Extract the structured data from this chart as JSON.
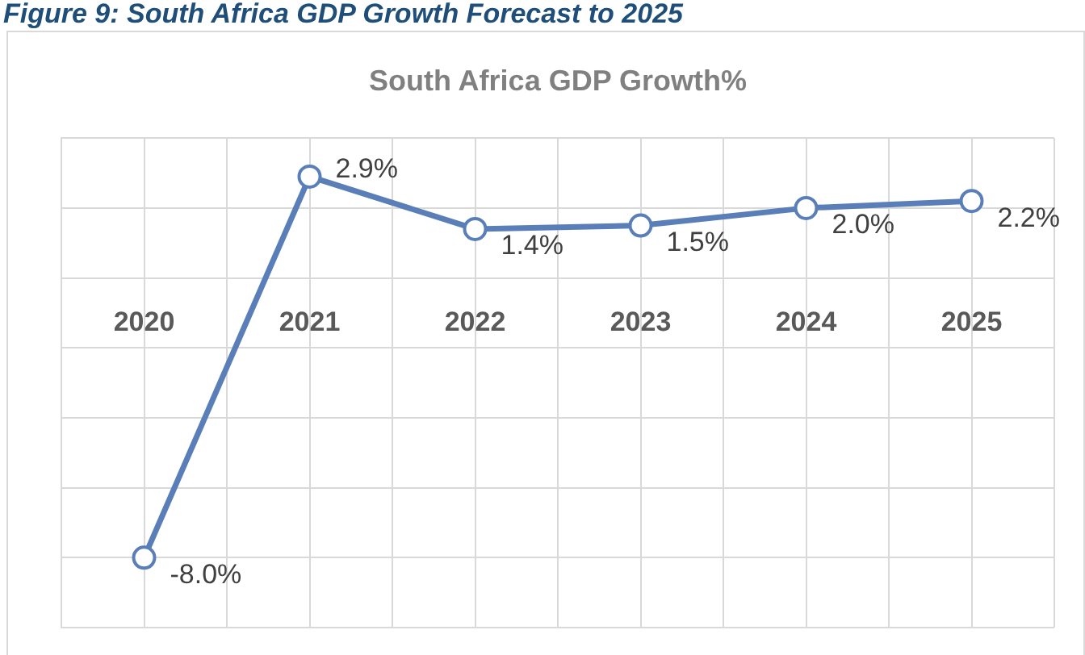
{
  "chart_data": {
    "type": "line",
    "title": "Figure 9: South Africa GDP Growth Forecast to 2025",
    "subtitle": "South Africa GDP Growth%",
    "categories": [
      "2020",
      "2021",
      "2022",
      "2023",
      "2024",
      "2025"
    ],
    "series": [
      {
        "color": "#5a7fb8",
        "values": [
          -8.0,
          2.9,
          1.4,
          1.5,
          2.0,
          2.2
        ],
        "value_labels": [
          "-8.0%",
          "2.9%",
          "1.4%",
          "1.5%",
          "2.0%",
          "2.2%"
        ]
      }
    ],
    "ylim": [
      -10,
      4
    ],
    "yticks": [
      -10,
      -8,
      -6,
      -4,
      -2,
      0,
      2,
      4
    ],
    "tick_labels": "x",
    "grid": true,
    "legend": false,
    "marker": "circle",
    "line_style": "solid"
  }
}
